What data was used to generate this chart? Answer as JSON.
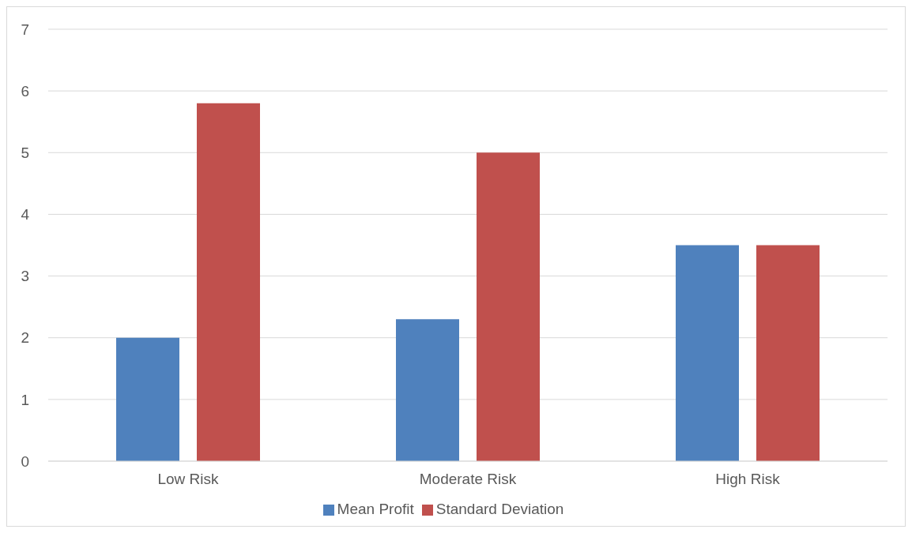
{
  "chart_data": {
    "type": "bar",
    "categories": [
      "Low Risk",
      "Moderate Risk",
      "High Risk"
    ],
    "series": [
      {
        "name": "Mean Profit",
        "color": "#4f81bd",
        "values": [
          2,
          2.3,
          3.5
        ]
      },
      {
        "name": "Standard Deviation",
        "color": "#c0504d",
        "values": [
          5.8,
          5,
          3.5
        ]
      }
    ],
    "ylim": [
      0,
      7
    ],
    "yticks": [
      0,
      1,
      2,
      3,
      4,
      5,
      6,
      7
    ],
    "grid": "y",
    "legend": "bottom"
  }
}
